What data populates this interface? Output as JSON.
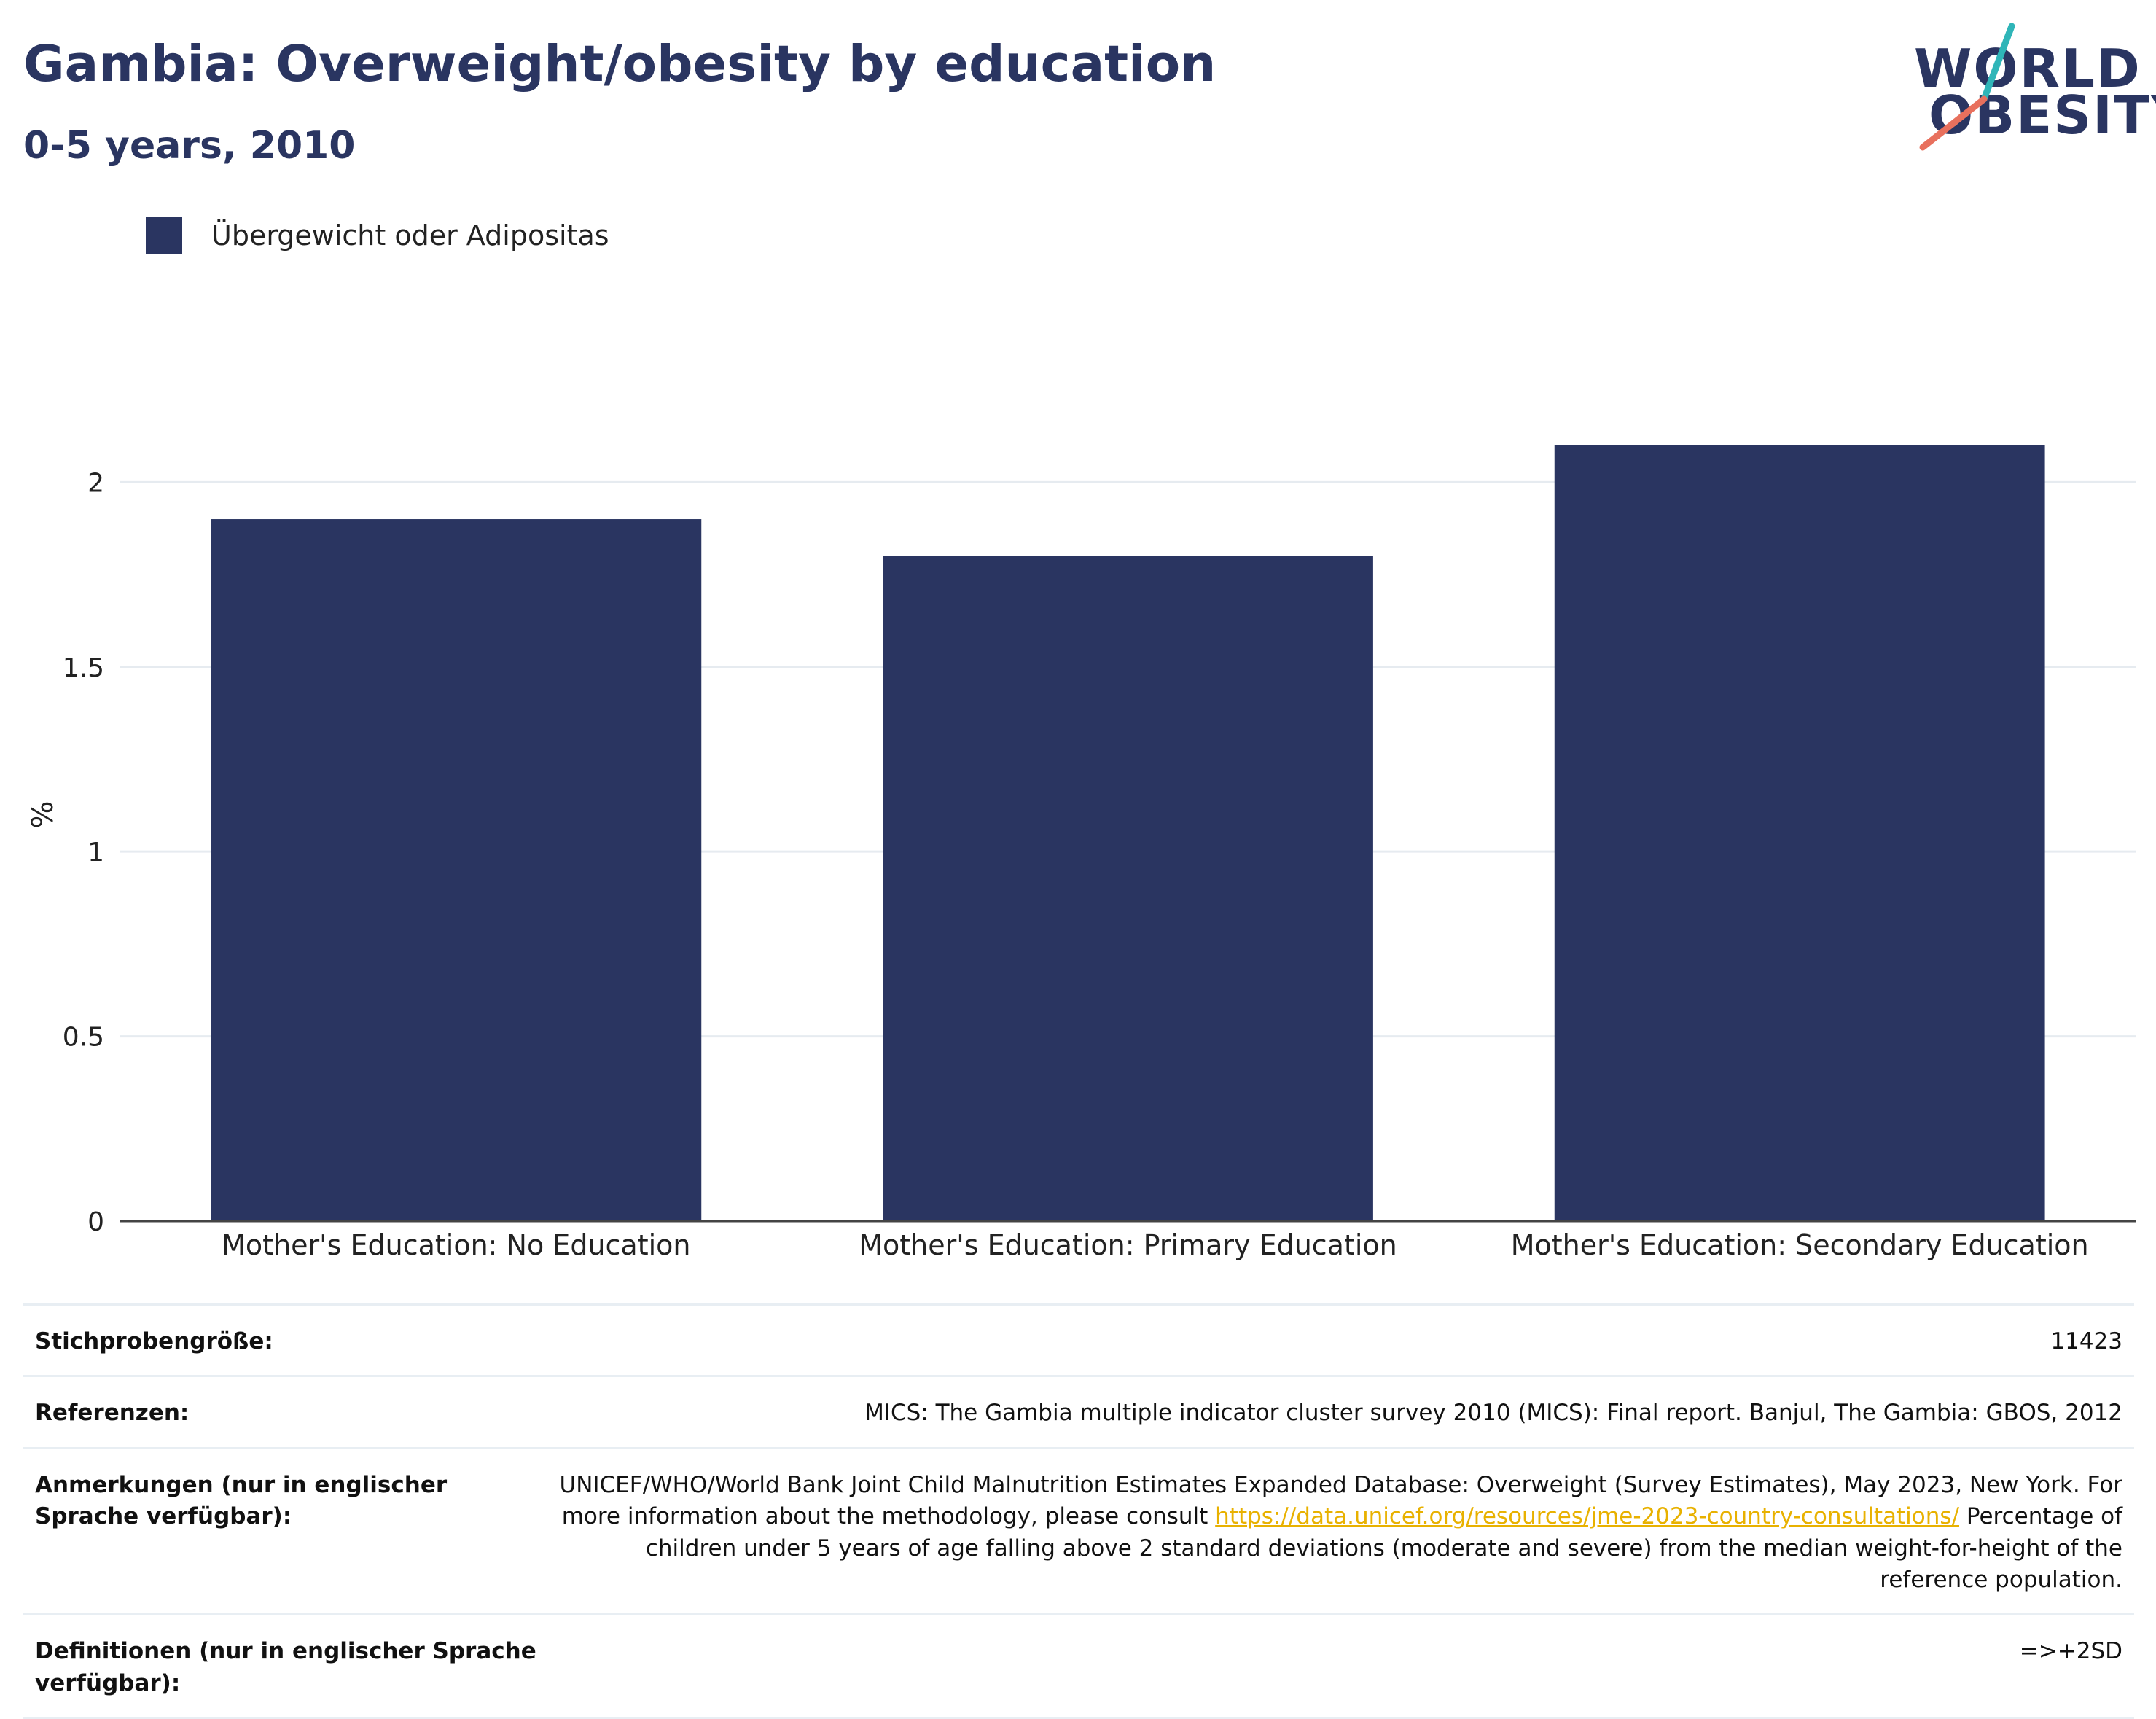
{
  "title": "Gambia: Overweight/obesity by education",
  "subtitle": "0-5 years, 2010",
  "logo": {
    "line1": "WORLD",
    "line2": "OBESITY",
    "accent_teal": "#2fb5b8",
    "accent_coral": "#e8705d"
  },
  "colors": {
    "bar": "#2a3561",
    "grid": "#e6ebf0",
    "axis": "#444444",
    "text": "#2a3561",
    "link": "#e8b100"
  },
  "legend": {
    "label": "Übergewicht oder Adipositas",
    "placement": "top-left"
  },
  "chart_data": {
    "type": "bar",
    "title": "Gambia: Overweight/obesity by education",
    "subtitle": "0-5 years, 2010",
    "ylabel": "%",
    "xlabel": "",
    "categories": [
      "Mother's Education: No Education",
      "Mother's Education: Primary Education",
      "Mother's Education: Secondary Education"
    ],
    "series": [
      {
        "name": "Übergewicht oder Adipositas",
        "values": [
          1.9,
          1.8,
          2.1
        ]
      }
    ],
    "ylim": [
      0,
      2.2
    ],
    "yticks": [
      0,
      0.5,
      1,
      1.5,
      2
    ],
    "ytick_labels": [
      "0",
      "0.5",
      "1",
      "1.5",
      "2"
    ],
    "grid": true
  },
  "meta": {
    "sample_size": {
      "label": "Stichprobengröße:",
      "value": "11423"
    },
    "references": {
      "label": "Referenzen:",
      "value": "MICS: The Gambia multiple indicator cluster survey 2010 (MICS): Final report. Banjul, The Gambia: GBOS, 2012"
    },
    "notes": {
      "label": "Anmerkungen (nur in englischer Sprache verfügbar):",
      "text_before": "UNICEF/WHO/World Bank Joint Child Malnutrition Estimates Expanded Database: Overweight (Survey Estimates), May 2023, New York. For more information about the methodology, please consult ",
      "link": "https://data.unicef.org/resources/jme-2023-country-consultations/",
      "text_after": " Percentage of children under 5 years of age falling above 2 standard deviations (moderate and severe) from the median weight-for-height of the reference population."
    },
    "definitions": {
      "label": "Definitionen (nur in englischer Sprache verfügbar):",
      "value": "=>+2SD"
    }
  }
}
